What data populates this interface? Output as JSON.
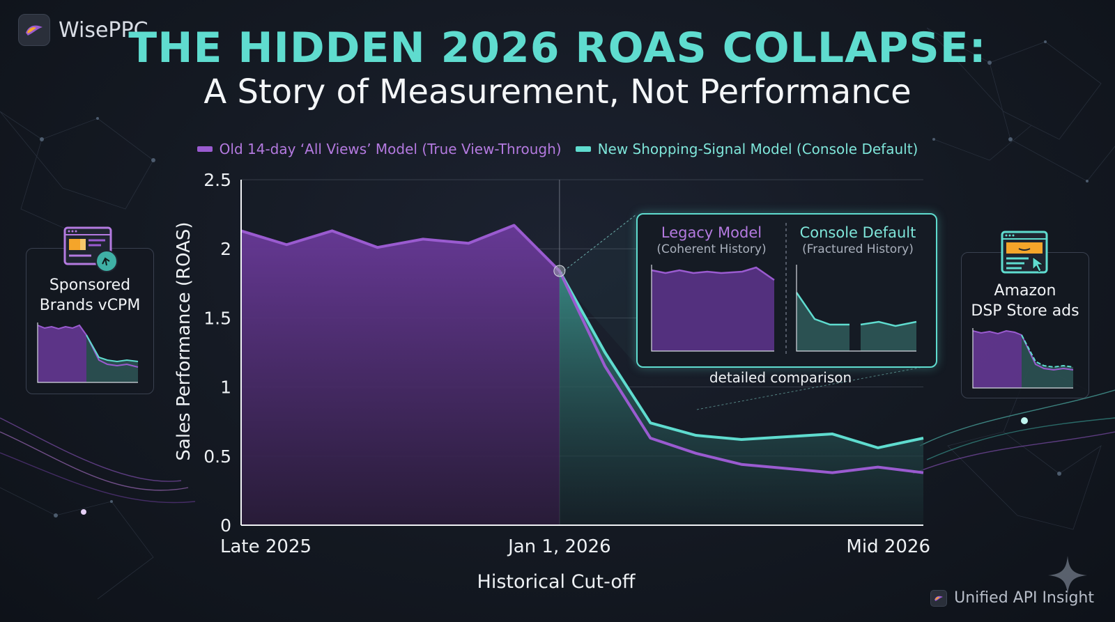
{
  "brand": {
    "name": "WisePPC",
    "logo_icon": "wiseppc-logo-icon"
  },
  "title": "THE HIDDEN 2026 ROAS COLLAPSE:",
  "subtitle": "A Story of Measurement, Not Performance",
  "colors": {
    "purple": "#9a5bd0",
    "teal": "#5fdccf",
    "title": "#5fdccf"
  },
  "chart_data": {
    "type": "area",
    "xlabel": "Historical Cut-off",
    "ylabel": "Sales Performance (ROAS)",
    "ylim": [
      0,
      2.5
    ],
    "yticks": [
      "0",
      "0.5",
      "1",
      "1.5",
      "2",
      "2.5"
    ],
    "x_tick_labels": [
      "Late 2025",
      "Jan 1, 2026",
      "Mid 2026"
    ],
    "grid": true,
    "legend": "top-center",
    "series": [
      {
        "name": "Old 14-day ‘All Views’ Model (True View-Through)",
        "color": "#9a5bd0",
        "x": [
          0,
          1,
          2,
          3,
          4,
          5,
          6,
          7,
          8,
          9,
          10,
          11,
          12,
          13,
          14,
          15
        ],
        "values": [
          2.13,
          2.03,
          2.13,
          2.01,
          2.07,
          2.04,
          2.17,
          1.84,
          1.15,
          0.63,
          0.52,
          0.44,
          0.41,
          0.38,
          0.42,
          0.38
        ]
      },
      {
        "name": "New Shopping-Signal Model (Console Default)",
        "color": "#5fdccf",
        "x": [
          7,
          8,
          9,
          10,
          11,
          12,
          13,
          14,
          15
        ],
        "values": [
          1.84,
          1.25,
          0.74,
          0.65,
          0.62,
          0.64,
          0.66,
          0.56,
          0.63
        ]
      }
    ],
    "cutoff_x": 7
  },
  "left_card": {
    "label_line1": "Sponsored",
    "label_line2": "Brands vCPM",
    "icon": "ad-window-icon"
  },
  "right_card": {
    "label_line1": "Amazon",
    "label_line2": "DSP Store ads",
    "icon": "store-window-icon"
  },
  "comparison": {
    "left_title": "Legacy Model",
    "left_sub": "(Coherent History)",
    "right_title": "Console Default",
    "right_sub": "(Fractured History)",
    "caption": "detailed comparison"
  },
  "footer": {
    "text": "Unified API Insight"
  }
}
